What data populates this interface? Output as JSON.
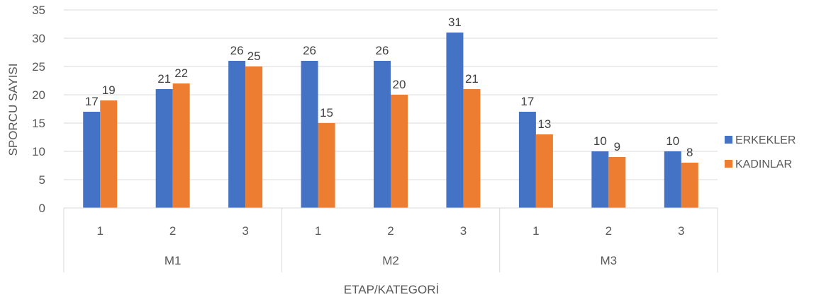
{
  "chart_data": {
    "type": "bar",
    "groups": [
      {
        "label": "M1",
        "categories": [
          "1",
          "2",
          "3"
        ]
      },
      {
        "label": "M2",
        "categories": [
          "1",
          "2",
          "3"
        ]
      },
      {
        "label": "M3",
        "categories": [
          "1",
          "2",
          "3"
        ]
      }
    ],
    "series": [
      {
        "name": "ERKEKLER",
        "color": "#4472C4",
        "values": [
          17,
          21,
          26,
          26,
          26,
          31,
          17,
          10,
          10
        ]
      },
      {
        "name": "KADINLAR",
        "color": "#ED7D31",
        "values": [
          19,
          22,
          25,
          15,
          20,
          21,
          13,
          9,
          8
        ]
      }
    ],
    "ylim": [
      0,
      35
    ],
    "yticks": [
      "0",
      "5",
      "10",
      "15",
      "20",
      "25",
      "30",
      "35"
    ],
    "ylabel": "SPORCU SAYISI",
    "xlabel": "ETAP/KATEGORİ",
    "gridlines": true,
    "legend_position": "right"
  }
}
